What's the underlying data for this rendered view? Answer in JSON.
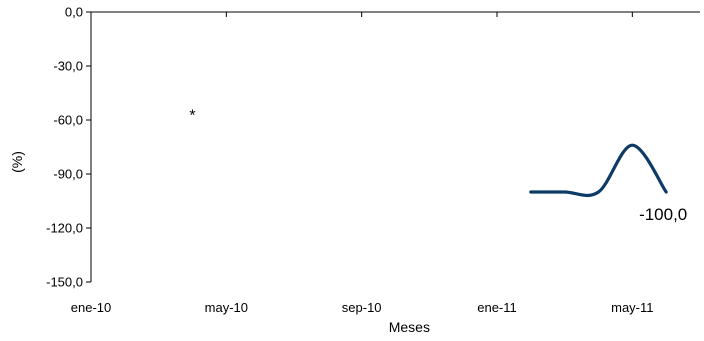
{
  "chart_data": {
    "type": "line",
    "title": "",
    "xlabel": "Meses",
    "ylabel": "(%)",
    "ylim": [
      -150,
      0
    ],
    "yticks": [
      0,
      -30,
      -60,
      -90,
      -120,
      -150
    ],
    "ytick_labels": [
      "0,0",
      "-30,0",
      "-60,0",
      "-90,0",
      "-120,0",
      "-150,0"
    ],
    "xlim": [
      "2010-01",
      "2011-07"
    ],
    "xticks": [
      "2010-01",
      "2010-05",
      "2010-09",
      "2011-01",
      "2011-05"
    ],
    "xtick_labels": [
      "ene-10",
      "may-10",
      "sep-10",
      "ene-11",
      "may-11"
    ],
    "grid": false,
    "legend": "none",
    "series": [
      {
        "color": "#0d3b66",
        "smooth": true,
        "points": [
          {
            "x": "2011-02",
            "y": -100
          },
          {
            "x": "2011-03",
            "y": -100
          },
          {
            "x": "2011-04",
            "y": -100
          },
          {
            "x": "2011-05",
            "y": -74
          },
          {
            "x": "2011-06",
            "y": -100
          }
        ]
      }
    ],
    "data_labels": [
      {
        "x": "2011-06",
        "y": -100,
        "text": "-100,0"
      }
    ],
    "annotations": [
      {
        "x": "2010-04",
        "y": -57,
        "text": "*"
      }
    ]
  }
}
